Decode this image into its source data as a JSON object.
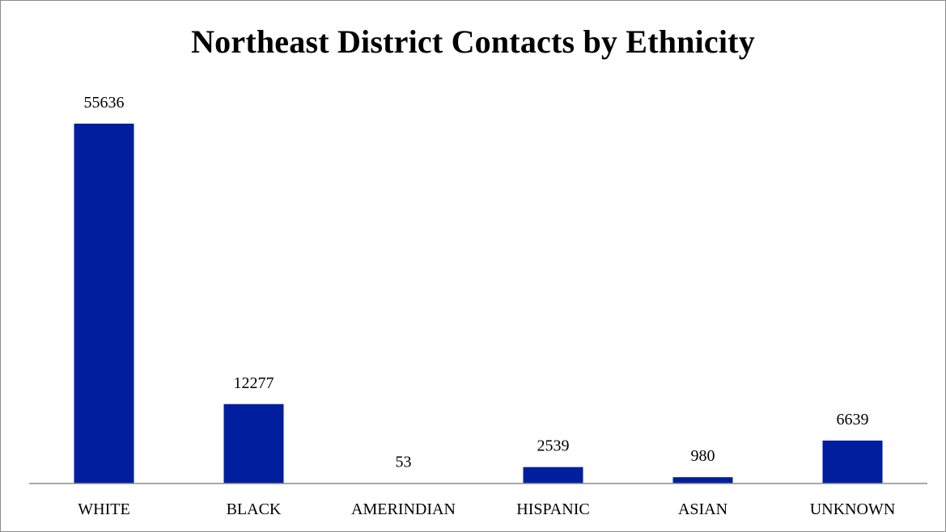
{
  "chart_data": {
    "type": "bar",
    "title": "Northeast District Contacts by Ethnicity",
    "categories": [
      "WHITE",
      "BLACK",
      "AMERINDIAN",
      "HISPANIC",
      "ASIAN",
      "UNKNOWN"
    ],
    "values": [
      55636,
      12277,
      53,
      2539,
      980,
      6639
    ],
    "xlabel": "",
    "ylabel": "",
    "ylim": [
      0,
      56000
    ],
    "grid": false,
    "legend": "none",
    "bar_color": "#001E9E",
    "data_labels": true
  }
}
